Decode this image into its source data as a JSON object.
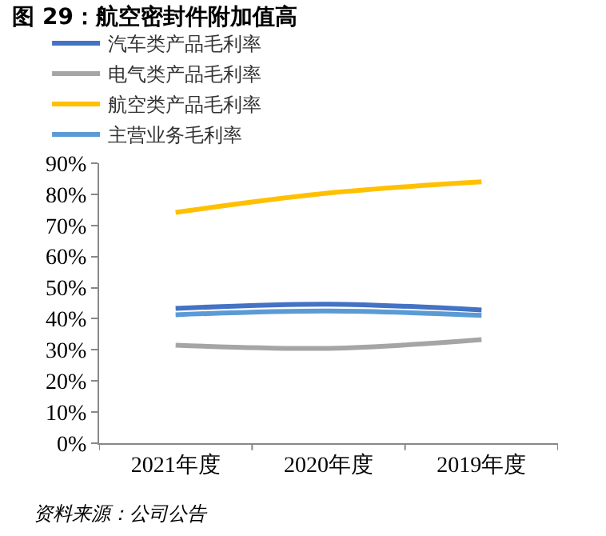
{
  "chart_data": {
    "type": "line",
    "title": "图 29：航空密封件附加值高",
    "categories": [
      "2021年度",
      "2020年度",
      "2019年度"
    ],
    "series": [
      {
        "name": "汽车类产品毛利率",
        "color": "#4472c4",
        "values": [
          43.3,
          44.7,
          42.8
        ]
      },
      {
        "name": "电气类产品毛利率",
        "color": "#a5a5a5",
        "values": [
          31.5,
          30.5,
          33.3
        ]
      },
      {
        "name": "航空类产品毛利率",
        "color": "#ffc000",
        "values": [
          74.2,
          80.4,
          84
        ]
      },
      {
        "name": "主营业务毛利率",
        "color": "#5b9bd5",
        "values": [
          41.3,
          42.5,
          41.1
        ]
      }
    ],
    "ylim": [
      0,
      90
    ],
    "yticks": [
      {
        "value": 0,
        "label": "0%"
      },
      {
        "value": 10,
        "label": "10%"
      },
      {
        "value": 20,
        "label": "20%"
      },
      {
        "value": 30,
        "label": "30%"
      },
      {
        "value": 40,
        "label": "40%"
      },
      {
        "value": 50,
        "label": "50%"
      },
      {
        "value": 60,
        "label": "60%"
      },
      {
        "value": 70,
        "label": "70%"
      },
      {
        "value": 80,
        "label": "80%"
      },
      {
        "value": 90,
        "label": "90%"
      }
    ],
    "legend": "top",
    "marker": "none",
    "line_style": "solid",
    "annotations": [
      "资料来源：公司公告"
    ]
  }
}
